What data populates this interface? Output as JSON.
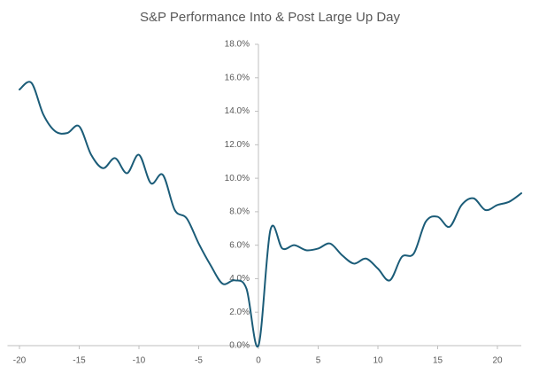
{
  "chart_data": {
    "type": "line",
    "title": "S&P Performance Into & Post Large Up Day",
    "x": [
      -20,
      -19,
      -18,
      -17,
      -16,
      -15,
      -14,
      -13,
      -12,
      -11,
      -10,
      -9,
      -8,
      -7,
      -6,
      -5,
      -4,
      -3,
      -2,
      -1,
      0,
      1,
      2,
      3,
      4,
      5,
      6,
      7,
      8,
      9,
      10,
      11,
      12,
      13,
      14,
      15,
      16,
      17,
      18,
      19,
      20,
      21,
      22
    ],
    "series": [
      {
        "color": "#1b5c78",
        "values": [
          15.3,
          15.7,
          13.8,
          12.8,
          12.7,
          13.1,
          11.4,
          10.6,
          11.2,
          10.3,
          11.4,
          9.7,
          10.2,
          8.1,
          7.6,
          6.1,
          4.8,
          3.7,
          3.9,
          3.4,
          0,
          6.9,
          5.8,
          6.0,
          5.7,
          5.8,
          6.1,
          5.4,
          4.9,
          5.2,
          4.6,
          3.9,
          5.3,
          5.5,
          7.4,
          7.7,
          7.1,
          8.4,
          8.8,
          8.1,
          8.4,
          8.6,
          9.1
        ]
      }
    ],
    "xlim": [
      -21,
      22
    ],
    "xticks": [
      -20,
      -15,
      -10,
      -5,
      0,
      5,
      10,
      15,
      20
    ],
    "ylim": [
      0,
      18
    ],
    "yticks": [
      {
        "value": 0,
        "label": "0.0%"
      },
      {
        "value": 2,
        "label": "2.0%"
      },
      {
        "value": 4,
        "label": "4.0%"
      },
      {
        "value": 6,
        "label": "6.0%"
      },
      {
        "value": 8,
        "label": "8.0%"
      },
      {
        "value": 10,
        "label": "10.0%"
      },
      {
        "value": 12,
        "label": "12.0%"
      },
      {
        "value": 14,
        "label": "14.0%"
      },
      {
        "value": 16,
        "label": "16.0%"
      },
      {
        "value": 18,
        "label": "18.0%"
      }
    ],
    "grid": false
  }
}
